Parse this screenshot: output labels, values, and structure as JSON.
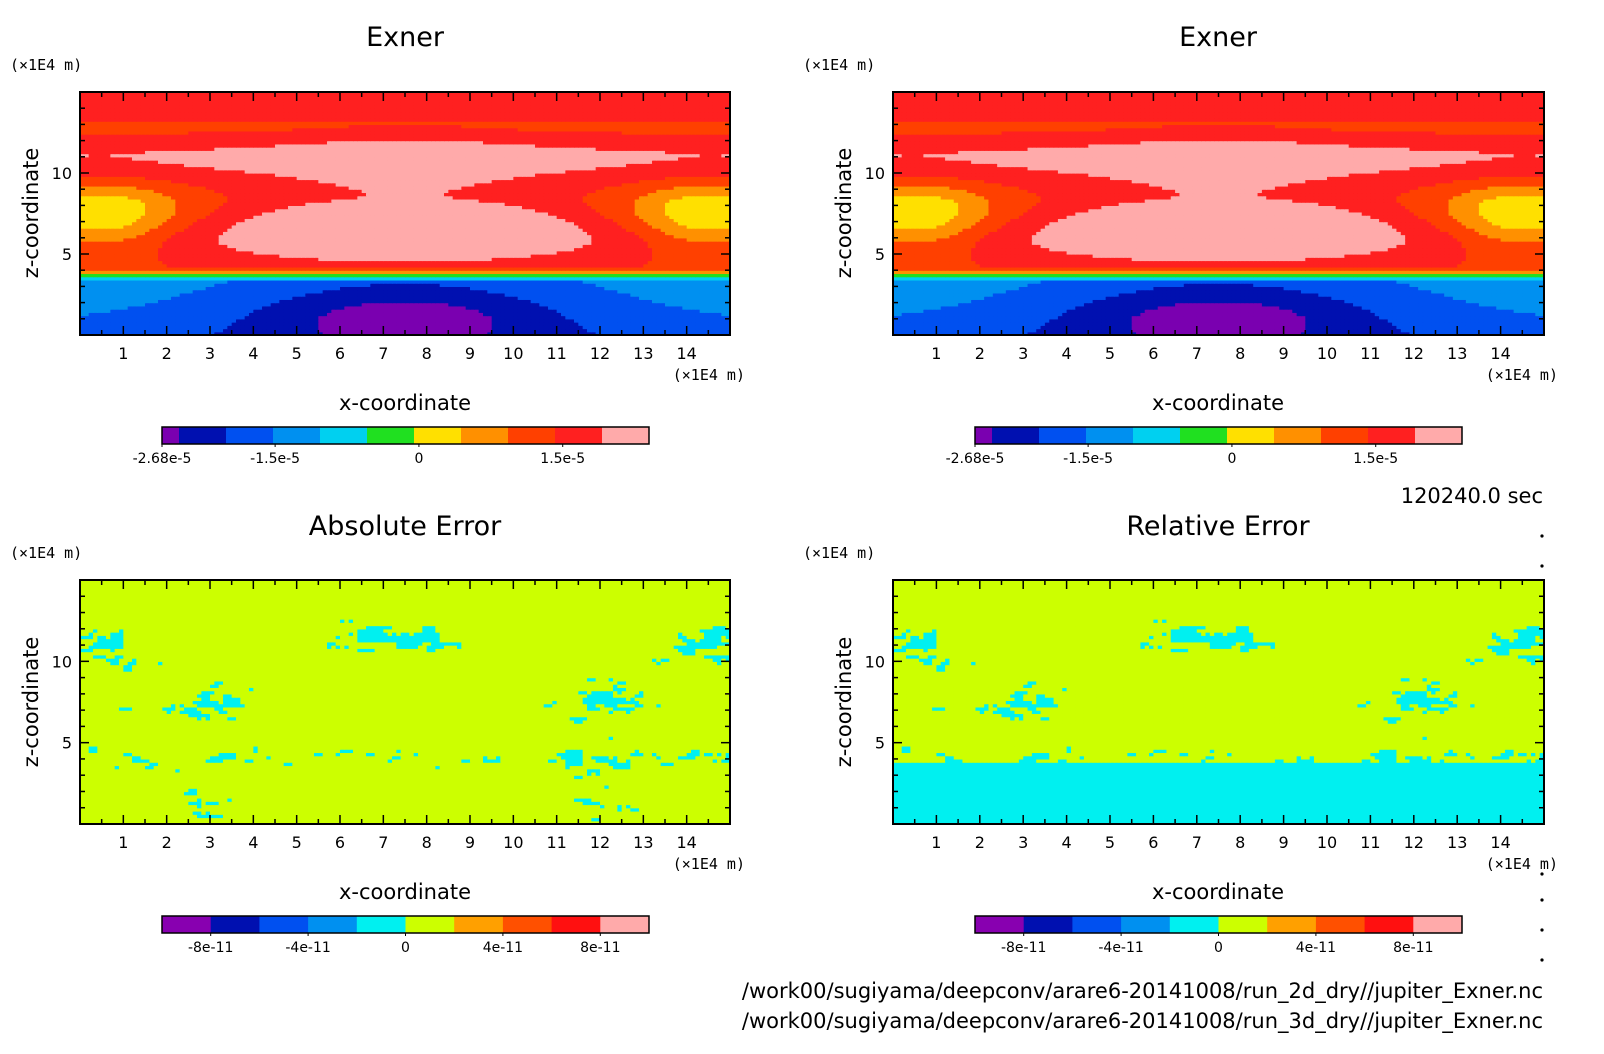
{
  "panels": [
    {
      "title": "Exner",
      "xlabel": "x-coordinate",
      "ylabel": "z-coordinate",
      "xunit": "(×1E4 m)",
      "yunit": "(×1E4 m)"
    },
    {
      "title": "Exner",
      "xlabel": "x-coordinate",
      "ylabel": "z-coordinate",
      "xunit": "(×1E4 m)",
      "yunit": "(×1E4 m)"
    },
    {
      "title": "Absolute Error",
      "xlabel": "x-coordinate",
      "ylabel": "z-coordinate",
      "xunit": "(×1E4 m)",
      "yunit": "(×1E4 m)"
    },
    {
      "title": "Relative Error",
      "xlabel": "x-coordinate",
      "ylabel": "z-coordinate",
      "xunit": "(×1E4 m)",
      "yunit": "(×1E4 m)"
    }
  ],
  "time_label": "120240.0 sec",
  "file_paths": [
    "/work00/sugiyama/deepconv/arare6-20141008/run_2d_dry//jupiter_Exner.nc",
    "/work00/sugiyama/deepconv/arare6-20141008/run_3d_dry//jupiter_Exner.nc"
  ],
  "chart_data": [
    {
      "type": "heatmap",
      "title": "Exner",
      "xlabel": "x-coordinate",
      "ylabel": "z-coordinate",
      "xlim": [
        0,
        15
      ],
      "ylim": [
        0,
        15
      ],
      "xticks": [
        "1",
        "2",
        "3",
        "4",
        "5",
        "6",
        "7",
        "8",
        "9",
        "10",
        "11",
        "12",
        "13",
        "14"
      ],
      "yticks": [
        "5",
        "10"
      ],
      "colorbar": {
        "colors": [
          "#7a00b0",
          "#0010b0",
          "#0050f0",
          "#0090f0",
          "#00d0f0",
          "#20e020",
          "#ffe000",
          "#ff9000",
          "#ff4000",
          "#ff2020",
          "#ffaaaa"
        ],
        "labels": [
          "-2.68e-5",
          "-1.5e-5",
          "0",
          "1.5e-5"
        ],
        "label_values": [
          -2.68e-05,
          -1.5e-05,
          0,
          1.5e-05
        ],
        "range": [
          -2.68e-05,
          2.4e-05
        ]
      }
    },
    {
      "type": "heatmap",
      "title": "Exner",
      "xlabel": "x-coordinate",
      "ylabel": "z-coordinate",
      "xlim": [
        0,
        15
      ],
      "ylim": [
        0,
        15
      ],
      "xticks": [
        "1",
        "2",
        "3",
        "4",
        "5",
        "6",
        "7",
        "8",
        "9",
        "10",
        "11",
        "12",
        "13",
        "14"
      ],
      "yticks": [
        "5",
        "10"
      ],
      "colorbar": {
        "colors": [
          "#7a00b0",
          "#0010b0",
          "#0050f0",
          "#0090f0",
          "#00d0f0",
          "#20e020",
          "#ffe000",
          "#ff9000",
          "#ff4000",
          "#ff2020",
          "#ffaaaa"
        ],
        "labels": [
          "-2.68e-5",
          "-1.5e-5",
          "0",
          "1.5e-5"
        ],
        "label_values": [
          -2.68e-05,
          -1.5e-05,
          0,
          1.5e-05
        ],
        "range": [
          -2.68e-05,
          2.4e-05
        ]
      }
    },
    {
      "type": "heatmap",
      "title": "Absolute Error",
      "xlabel": "x-coordinate",
      "ylabel": "z-coordinate",
      "xlim": [
        0,
        15
      ],
      "ylim": [
        0,
        15
      ],
      "xticks": [
        "1",
        "2",
        "3",
        "4",
        "5",
        "6",
        "7",
        "8",
        "9",
        "10",
        "11",
        "12",
        "13",
        "14"
      ],
      "yticks": [
        "5",
        "10"
      ],
      "colorbar": {
        "colors": [
          "#8800b0",
          "#0010b0",
          "#0050f0",
          "#0090f0",
          "#00f0f0",
          "#ccff00",
          "#ffa000",
          "#ff5000",
          "#ff1010",
          "#ffaaaa"
        ],
        "labels": [
          "-8e-11",
          "-4e-11",
          "0",
          "4e-11",
          "8e-11"
        ],
        "label_values": [
          -8e-11,
          -4e-11,
          0,
          4e-11,
          8e-11
        ],
        "range": [
          -1e-10,
          1e-10
        ]
      }
    },
    {
      "type": "heatmap",
      "title": "Relative Error",
      "xlabel": "x-coordinate",
      "ylabel": "z-coordinate",
      "xlim": [
        0,
        15
      ],
      "ylim": [
        0,
        15
      ],
      "xticks": [
        "1",
        "2",
        "3",
        "4",
        "5",
        "6",
        "7",
        "8",
        "9",
        "10",
        "11",
        "12",
        "13",
        "14"
      ],
      "yticks": [
        "5",
        "10"
      ],
      "colorbar": {
        "colors": [
          "#8800b0",
          "#0010b0",
          "#0050f0",
          "#0090f0",
          "#00f0f0",
          "#ccff00",
          "#ffa000",
          "#ff5000",
          "#ff1010",
          "#ffaaaa"
        ],
        "labels": [
          "-8e-11",
          "-4e-11",
          "0",
          "4e-11",
          "8e-11"
        ],
        "label_values": [
          -8e-11,
          -4e-11,
          0,
          4e-11,
          8e-11
        ],
        "range": [
          -1e-10,
          1e-10
        ]
      }
    }
  ]
}
